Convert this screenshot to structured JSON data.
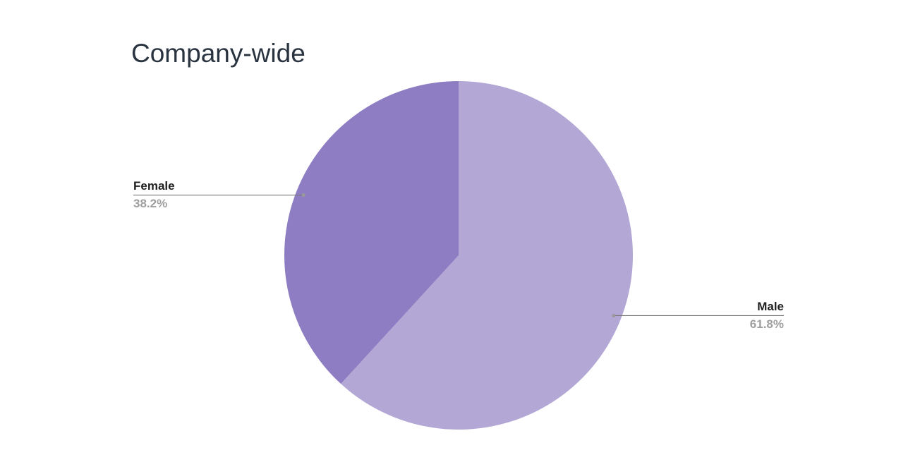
{
  "chart_data": {
    "type": "pie",
    "title": "Company-wide",
    "categories": [
      "Male",
      "Female"
    ],
    "values": [
      61.8,
      38.2
    ],
    "value_labels": [
      "61.8%",
      "38.2%"
    ],
    "colors": [
      "#b3a7d6",
      "#8e7dc3"
    ]
  }
}
